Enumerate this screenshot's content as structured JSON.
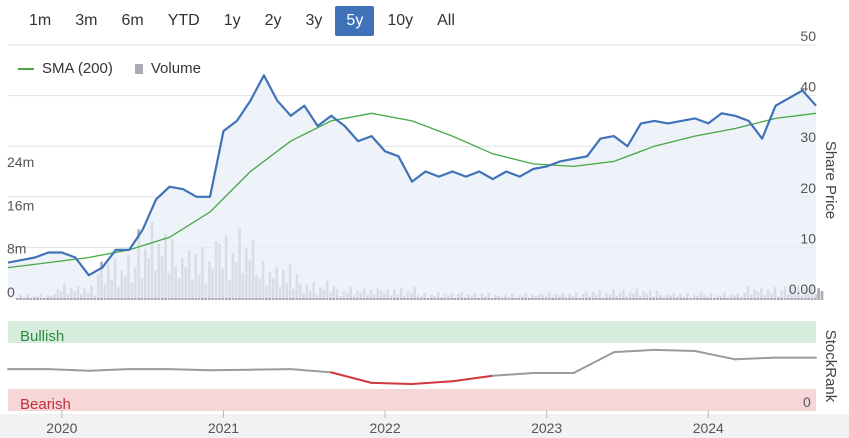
{
  "range_selector": {
    "buttons": [
      "1m",
      "3m",
      "6m",
      "YTD",
      "1y",
      "2y",
      "3y",
      "5y",
      "10y",
      "All"
    ],
    "active": "5y"
  },
  "legend": {
    "sma_label": "SMA (200)",
    "volume_label": "Volume"
  },
  "colors": {
    "price": "#3f72b8",
    "sma": "#45a845",
    "volume": "#a9aab5",
    "bullish_band": "#d6ecdc",
    "bearish_band": "#f6d6d8",
    "rank_neutral": "#9b9b9b",
    "rank_bearish": "#d0393b",
    "active_button": "#3f72b8"
  },
  "chart_data": [
    {
      "type": "line",
      "title": "",
      "ylabel": "Share Price",
      "ylim": [
        0,
        50
      ],
      "yticks": [
        "0.00",
        "10",
        "20",
        "30",
        "40",
        "50"
      ],
      "volume_axis": {
        "ticks": [
          "0",
          "8m",
          "16m",
          "24m"
        ],
        "ylim": [
          0,
          32000000
        ]
      },
      "xticks": [
        "2020",
        "2021",
        "2022",
        "2023",
        "2024"
      ],
      "x_range": [
        "2019-09",
        "2024-09"
      ],
      "grid": true,
      "legend_position": "top-left",
      "series": [
        {
          "name": "",
          "kind": "price",
          "x": [
            "2019-09",
            "2019-10",
            "2019-11",
            "2019-12",
            "2020-01",
            "2020-02",
            "2020-03",
            "2020-04",
            "2020-05",
            "2020-06",
            "2020-07",
            "2020-08",
            "2020-09",
            "2020-10",
            "2020-11",
            "2020-12",
            "2021-01",
            "2021-02",
            "2021-03",
            "2021-04",
            "2021-05",
            "2021-06",
            "2021-07",
            "2021-08",
            "2021-09",
            "2021-10",
            "2021-11",
            "2021-12",
            "2022-01",
            "2022-02",
            "2022-03",
            "2022-04",
            "2022-05",
            "2022-06",
            "2022-07",
            "2022-08",
            "2022-09",
            "2022-10",
            "2022-11",
            "2022-12",
            "2023-01",
            "2023-02",
            "2023-03",
            "2023-04",
            "2023-05",
            "2023-06",
            "2023-07",
            "2023-08",
            "2023-09",
            "2023-10",
            "2023-11",
            "2023-12",
            "2024-01",
            "2024-02",
            "2024-03",
            "2024-04",
            "2024-05",
            "2024-06",
            "2024-07",
            "2024-08",
            "2024-09"
          ],
          "values": [
            7,
            7.5,
            8,
            9,
            9,
            8,
            4.5,
            6,
            9.5,
            9.5,
            13.5,
            19.5,
            22,
            21.5,
            20,
            20,
            33,
            35,
            39,
            44,
            39,
            36,
            38,
            34,
            36,
            34,
            31,
            32,
            29,
            28,
            23,
            25,
            24,
            25,
            24,
            25,
            23.5,
            25,
            24,
            25.5,
            26,
            27,
            27.5,
            28,
            31.5,
            32,
            30,
            34.5,
            35,
            34.5,
            35,
            35.5,
            34.5,
            36.5,
            36,
            35,
            31.5,
            38,
            39.5,
            41,
            38
          ]
        },
        {
          "name": "SMA (200)",
          "kind": "sma",
          "x": [
            "2019-09",
            "2019-12",
            "2020-03",
            "2020-06",
            "2020-09",
            "2020-12",
            "2021-03",
            "2021-06",
            "2021-09",
            "2021-12",
            "2022-03",
            "2022-06",
            "2022-09",
            "2022-12",
            "2023-03",
            "2023-06",
            "2023-09",
            "2023-12",
            "2024-03",
            "2024-06",
            "2024-09"
          ],
          "values": [
            6,
            7,
            8,
            9.5,
            12,
            17,
            25,
            31,
            35,
            36.5,
            35,
            32,
            28.5,
            26.5,
            26,
            27,
            30,
            32,
            33.5,
            35.5,
            36.5
          ]
        }
      ],
      "volume_series": {
        "kind": "volume",
        "x": [
          "2019-Q4",
          "2020-Q1",
          "2020-Q2",
          "2020-Q3",
          "2020-Q4",
          "2021-Q1",
          "2021-Q2",
          "2021-Q3",
          "2021-Q4",
          "2022-Q1",
          "2022-Q2",
          "2022-Q3",
          "2022-Q4",
          "2023-Q1",
          "2023-Q2",
          "2023-Q3",
          "2023-Q4",
          "2024-Q1",
          "2024-Q2",
          "2024-Q3"
        ],
        "values": [
          1000000,
          2500000,
          7000000,
          12000000,
          9000000,
          11000000,
          6000000,
          3000000,
          2000000,
          2000000,
          1200000,
          1200000,
          1100000,
          1300000,
          1600000,
          1800000,
          1200000,
          1200000,
          2200000,
          2500000
        ]
      }
    },
    {
      "type": "line",
      "ylabel": "StockRank",
      "ylim": [
        0,
        100
      ],
      "yticks": [
        "0"
      ],
      "bands": [
        {
          "label": "Bullish"
        },
        {
          "label": "Bearish"
        }
      ],
      "series": [
        {
          "name": "",
          "kind": "rank",
          "x": [
            "2019-09",
            "2019-12",
            "2020-03",
            "2020-06",
            "2020-09",
            "2020-12",
            "2021-03",
            "2021-06",
            "2021-09",
            "2021-12",
            "2022-03",
            "2022-06",
            "2022-09",
            "2022-12",
            "2023-03",
            "2023-06",
            "2023-09",
            "2023-12",
            "2024-03",
            "2024-06",
            "2024-09"
          ],
          "values": [
            47,
            47,
            44,
            47,
            47,
            45,
            46,
            47,
            41,
            22,
            20,
            25,
            35,
            40,
            40,
            78,
            82,
            80,
            65,
            68,
            68
          ]
        }
      ]
    }
  ]
}
